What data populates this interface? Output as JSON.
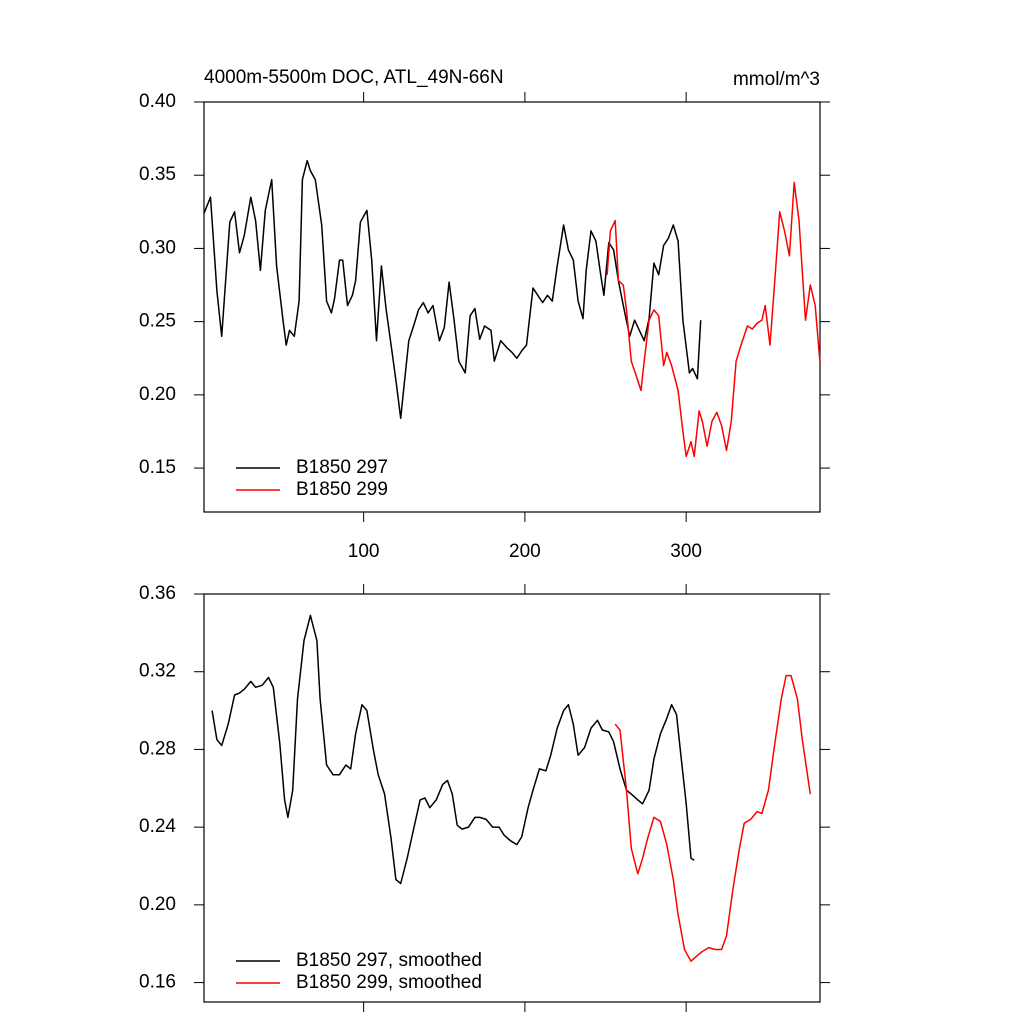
{
  "chart_data": [
    {
      "type": "line",
      "title": "4000m-5500m DOC, ATL_49N-66N",
      "units": "mmol/m^3",
      "xlim": [
        1,
        383
      ],
      "xticks": [
        100,
        200,
        300
      ],
      "show_xtick_labels": true,
      "ylim": [
        0.12,
        0.4
      ],
      "yticks": [
        {
          "value": 0.4,
          "label": "0.40"
        },
        0.35,
        {
          "value": 0.3,
          "label": "0.30"
        },
        0.25,
        {
          "value": 0.2,
          "label": "0.20"
        },
        0.15
      ],
      "legend": "lower left",
      "series": [
        {
          "name": "B1850 297",
          "color": "#000000",
          "x": [
            1,
            5,
            9,
            12,
            17,
            20,
            23,
            26,
            30,
            33,
            36,
            39,
            43,
            46,
            50,
            52,
            54,
            57,
            60,
            62,
            65,
            67,
            70,
            74,
            77,
            80,
            82,
            85,
            87,
            90,
            93,
            95,
            98,
            102,
            105,
            108,
            111,
            114,
            117,
            120,
            123,
            125,
            128,
            131,
            134,
            137,
            140,
            143,
            147,
            150,
            153,
            156,
            159,
            163,
            166,
            169,
            172,
            175,
            179,
            181,
            185,
            189,
            192,
            195,
            198,
            201,
            205,
            208,
            211,
            214,
            217,
            220,
            224,
            227,
            230,
            233,
            236,
            238,
            241,
            244,
            247,
            249,
            252,
            255,
            258,
            261,
            265,
            268,
            271,
            274,
            277,
            280,
            283,
            286,
            289,
            292,
            295,
            298,
            302,
            304,
            307,
            309
          ],
          "values": [
            0.324,
            0.335,
            0.271,
            0.24,
            0.318,
            0.325,
            0.297,
            0.309,
            0.335,
            0.319,
            0.285,
            0.326,
            0.347,
            0.288,
            0.251,
            0.234,
            0.244,
            0.24,
            0.264,
            0.347,
            0.36,
            0.353,
            0.347,
            0.316,
            0.264,
            0.256,
            0.266,
            0.292,
            0.292,
            0.261,
            0.268,
            0.278,
            0.318,
            0.326,
            0.292,
            0.237,
            0.288,
            0.258,
            0.234,
            0.21,
            0.184,
            0.206,
            0.237,
            0.247,
            0.258,
            0.263,
            0.256,
            0.261,
            0.237,
            0.246,
            0.277,
            0.252,
            0.223,
            0.215,
            0.254,
            0.259,
            0.238,
            0.247,
            0.244,
            0.223,
            0.237,
            0.232,
            0.229,
            0.225,
            0.23,
            0.234,
            0.273,
            0.268,
            0.263,
            0.268,
            0.264,
            0.288,
            0.316,
            0.299,
            0.292,
            0.264,
            0.252,
            0.285,
            0.312,
            0.305,
            0.282,
            0.268,
            0.304,
            0.299,
            0.278,
            0.261,
            0.24,
            0.251,
            0.244,
            0.237,
            0.252,
            0.29,
            0.282,
            0.302,
            0.307,
            0.316,
            0.305,
            0.251,
            0.215,
            0.218,
            0.211,
            0.251
          ]
        },
        {
          "name": "B1850 299",
          "color": "#ff0000",
          "x": [
            251,
            253,
            256,
            258,
            261,
            263,
            266,
            269,
            272,
            274,
            277,
            280,
            283,
            286,
            288,
            291,
            295,
            298,
            300,
            303,
            305,
            308,
            310,
            313,
            316,
            319,
            322,
            325,
            328,
            331,
            334,
            338,
            341,
            344,
            347,
            349,
            352,
            355,
            358,
            361,
            364,
            367,
            370,
            374,
            377,
            380,
            383
          ],
          "values": [
            0.282,
            0.312,
            0.319,
            0.278,
            0.275,
            0.258,
            0.223,
            0.213,
            0.203,
            0.223,
            0.251,
            0.258,
            0.254,
            0.22,
            0.229,
            0.22,
            0.203,
            0.175,
            0.158,
            0.168,
            0.158,
            0.189,
            0.182,
            0.165,
            0.182,
            0.188,
            0.179,
            0.162,
            0.182,
            0.223,
            0.234,
            0.247,
            0.245,
            0.249,
            0.251,
            0.261,
            0.234,
            0.278,
            0.325,
            0.312,
            0.295,
            0.345,
            0.319,
            0.251,
            0.275,
            0.261,
            0.222
          ]
        }
      ]
    },
    {
      "type": "line",
      "xlim": [
        1,
        383
      ],
      "xticks": [
        100,
        200,
        300
      ],
      "show_xtick_labels": false,
      "ylim": [
        0.15,
        0.36
      ],
      "yticks": [
        0.36,
        0.32,
        0.28,
        0.24,
        {
          "value": 0.2,
          "label": "0.20"
        },
        0.16
      ],
      "legend": "lower left",
      "series": [
        {
          "name": "B1850 297, smoothed",
          "color": "#000000",
          "x": [
            6,
            9,
            12,
            16,
            20,
            23,
            26,
            30,
            33,
            37,
            41,
            44,
            48,
            51,
            53,
            56,
            59,
            63,
            67,
            71,
            73,
            77,
            81,
            85,
            89,
            92,
            95,
            99,
            102,
            106,
            109,
            113,
            117,
            120,
            123,
            127,
            131,
            135,
            138,
            141,
            145,
            149,
            152,
            155,
            158,
            161,
            165,
            169,
            172,
            176,
            180,
            184,
            187,
            191,
            195,
            198,
            202,
            205,
            209,
            213,
            216,
            220,
            224,
            227,
            230,
            233,
            237,
            241,
            245,
            248,
            252,
            255,
            259,
            263,
            266,
            270,
            273,
            277,
            280,
            284,
            288,
            291,
            294,
            297,
            300,
            303,
            305
          ],
          "values": [
            0.3,
            0.285,
            0.282,
            0.293,
            0.308,
            0.309,
            0.311,
            0.315,
            0.312,
            0.313,
            0.317,
            0.312,
            0.283,
            0.254,
            0.245,
            0.259,
            0.306,
            0.336,
            0.349,
            0.336,
            0.306,
            0.272,
            0.267,
            0.267,
            0.272,
            0.27,
            0.288,
            0.303,
            0.3,
            0.28,
            0.267,
            0.257,
            0.234,
            0.213,
            0.211,
            0.224,
            0.239,
            0.254,
            0.255,
            0.25,
            0.254,
            0.262,
            0.264,
            0.257,
            0.241,
            0.239,
            0.24,
            0.245,
            0.245,
            0.244,
            0.24,
            0.24,
            0.236,
            0.233,
            0.231,
            0.235,
            0.25,
            0.259,
            0.27,
            0.269,
            0.277,
            0.291,
            0.3,
            0.303,
            0.293,
            0.277,
            0.281,
            0.291,
            0.295,
            0.29,
            0.289,
            0.284,
            0.27,
            0.259,
            0.257,
            0.254,
            0.252,
            0.259,
            0.275,
            0.288,
            0.296,
            0.303,
            0.298,
            0.275,
            0.252,
            0.224,
            0.223
          ]
        },
        {
          "name": "B1850 299, smoothed",
          "color": "#ff0000",
          "x": [
            256,
            259,
            263,
            266,
            270,
            273,
            276,
            280,
            284,
            288,
            292,
            295,
            299,
            303,
            307,
            310,
            314,
            318,
            322,
            325,
            329,
            333,
            336,
            340,
            344,
            347,
            351,
            355,
            359,
            362,
            365,
            369,
            372,
            377
          ],
          "values": [
            0.293,
            0.29,
            0.259,
            0.229,
            0.216,
            0.224,
            0.234,
            0.245,
            0.243,
            0.231,
            0.213,
            0.195,
            0.177,
            0.171,
            0.174,
            0.176,
            0.178,
            0.177,
            0.177,
            0.184,
            0.208,
            0.229,
            0.242,
            0.244,
            0.248,
            0.247,
            0.259,
            0.283,
            0.306,
            0.318,
            0.318,
            0.306,
            0.285,
            0.257
          ]
        }
      ]
    }
  ]
}
